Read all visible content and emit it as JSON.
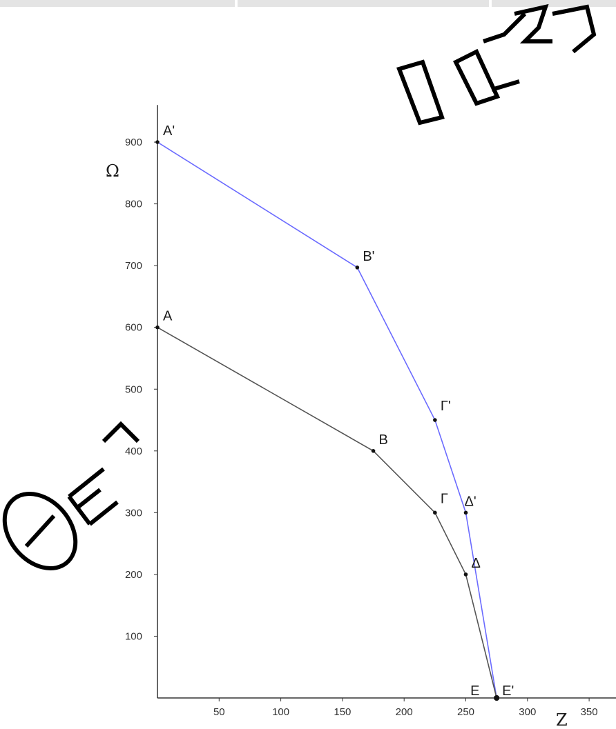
{
  "chart_data": {
    "type": "line",
    "xlabel": "Z",
    "ylabel": "Ω",
    "xlim": [
      0,
      370
    ],
    "ylim": [
      0,
      940
    ],
    "x_ticks": [
      "50",
      "100",
      "150",
      "200",
      "250",
      "300",
      "350"
    ],
    "y_ticks": [
      "100",
      "200",
      "300",
      "400",
      "500",
      "600",
      "700",
      "800",
      "900"
    ],
    "grid": false,
    "series": [
      {
        "color": "#6b6bff",
        "points": [
          {
            "label": "A'",
            "x": 0,
            "y": 900
          },
          {
            "label": "B'",
            "x": 162,
            "y": 697
          },
          {
            "label": "Γ'",
            "x": 225,
            "y": 450
          },
          {
            "label": "Δ'",
            "x": 250,
            "y": 300
          },
          {
            "label": "E'",
            "x": 275,
            "y": 0
          }
        ]
      },
      {
        "color": "#555555",
        "points": [
          {
            "label": "A",
            "x": 0,
            "y": 600
          },
          {
            "label": "B",
            "x": 175,
            "y": 400
          },
          {
            "label": "Γ",
            "x": 225,
            "y": 300
          },
          {
            "label": "Δ",
            "x": 250,
            "y": 200
          },
          {
            "label": "E",
            "x": 275,
            "y": 0
          }
        ]
      }
    ]
  },
  "watermark": {
    "text": "ΘΕΜΑΤΑ ΑΠΟ ΟΣΤΕΠ",
    "color": "#000000"
  }
}
